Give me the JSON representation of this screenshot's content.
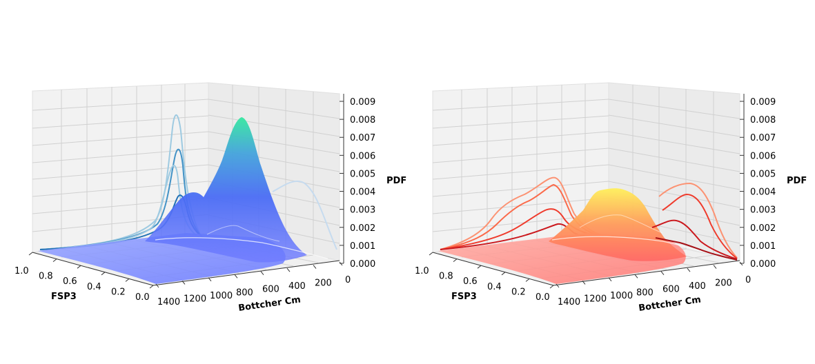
{
  "chart_data": [
    {
      "type": "surface3d",
      "colormap": "cool-blue-to-green",
      "side_curve_colors": [
        "#9ecae1",
        "#4292c6",
        "#2171b5",
        "#08519c",
        "#c6dbef"
      ],
      "xlabel": "FSP3",
      "ylabel": "Bottcher Cm",
      "zlabel": "PDF",
      "x_ticks": [
        "1.0",
        "0.8",
        "0.6",
        "0.4",
        "0.2",
        "0.0"
      ],
      "y_ticks": [
        "1400",
        "1200",
        "1000",
        "800",
        "600",
        "400",
        "200",
        "0"
      ],
      "z_ticks": [
        "0.000",
        "0.001",
        "0.002",
        "0.003",
        "0.004",
        "0.005",
        "0.006",
        "0.007",
        "0.008",
        "0.009"
      ],
      "xlim": [
        0,
        1
      ],
      "ylim": [
        0,
        1400
      ],
      "zlim": [
        0,
        0.009
      ],
      "surface_peaks": [
        {
          "fsp3": 0.12,
          "bottcher": 700,
          "pdf": 0.0082
        },
        {
          "fsp3": 0.25,
          "bottcher": 900,
          "pdf": 0.0038
        },
        {
          "fsp3": 0.05,
          "bottcher": 520,
          "pdf": 0.0028
        }
      ],
      "fsp3_marginal_peaks": [
        0.0083,
        0.0064,
        0.0057,
        0.0042
      ],
      "bottcher_marginal_peak": {
        "bottcher": 400,
        "pdf": 0.0046
      }
    },
    {
      "type": "surface3d",
      "colormap": "red-to-yellow",
      "side_curve_colors": [
        "#fc9272",
        "#fb6a4a",
        "#ef3b2c",
        "#cb181d",
        "#a50f15"
      ],
      "xlabel": "FSP3",
      "ylabel": "Bottcher Cm",
      "zlabel": "PDF",
      "x_ticks": [
        "1.0",
        "0.8",
        "0.6",
        "0.4",
        "0.2",
        "0.0"
      ],
      "y_ticks": [
        "1400",
        "1200",
        "1000",
        "800",
        "600",
        "400",
        "200",
        "0"
      ],
      "z_ticks": [
        "0.000",
        "0.001",
        "0.002",
        "0.003",
        "0.004",
        "0.005",
        "0.006",
        "0.007",
        "0.008",
        "0.009"
      ],
      "xlim": [
        0,
        1
      ],
      "ylim": [
        0,
        1400
      ],
      "zlim": [
        0,
        0.009
      ],
      "surface_peaks": [
        {
          "fsp3": 0.25,
          "bottcher": 750,
          "pdf": 0.0039
        },
        {
          "fsp3": 0.1,
          "bottcher": 600,
          "pdf": 0.0036
        }
      ],
      "fsp3_marginal_peaks": [
        0.0049,
        0.0045,
        0.003,
        0.0022
      ],
      "bottcher_marginal_peak": {
        "bottcher": 420,
        "pdf": 0.0045
      }
    }
  ]
}
